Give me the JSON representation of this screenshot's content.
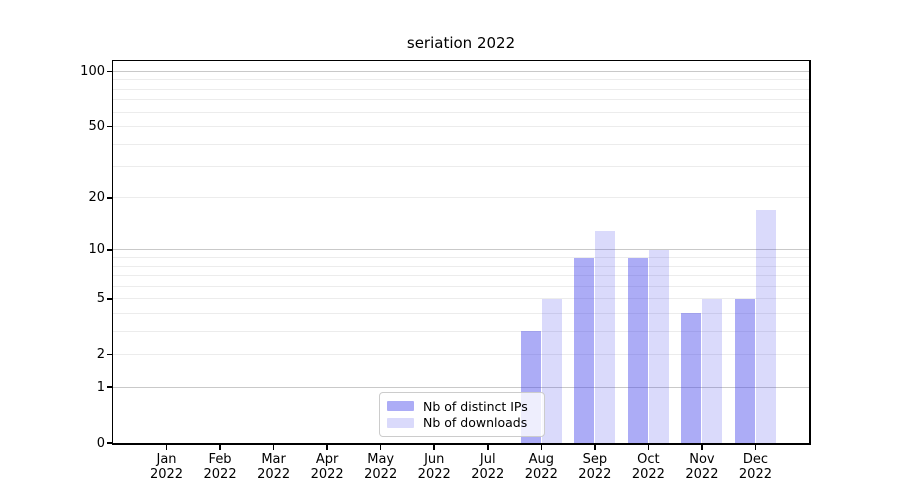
{
  "chart_data": {
    "type": "bar",
    "title": "seriation 2022",
    "categories": [
      "Jan 2022",
      "Feb 2022",
      "Mar 2022",
      "Apr 2022",
      "May 2022",
      "Jun 2022",
      "Jul 2022",
      "Aug 2022",
      "Sep 2022",
      "Oct 2022",
      "Nov 2022",
      "Dec 2022"
    ],
    "series": [
      {
        "name": "Nb of distinct IPs",
        "color": "rgba(70,70,235,0.45)",
        "values": [
          0,
          0,
          0,
          0,
          0,
          0,
          0,
          3,
          9,
          9,
          4,
          5
        ]
      },
      {
        "name": "Nb of downloads",
        "color": "rgba(70,70,235,0.2)",
        "values": [
          0,
          0,
          0,
          0,
          0,
          0,
          0,
          5,
          13,
          10,
          5,
          17
        ]
      }
    ],
    "xlabel": "",
    "ylabel": "",
    "yscale": "log1p",
    "ylim": [
      0,
      114
    ],
    "y_tick_labels": [
      0,
      1,
      2,
      5,
      10,
      20,
      50,
      100
    ],
    "y_major_gridlines": [
      1,
      10,
      100
    ],
    "y_minor_gridlines": [
      2,
      3,
      4,
      5,
      6,
      7,
      8,
      9,
      20,
      30,
      40,
      50,
      60,
      70,
      80,
      90
    ],
    "grid": true,
    "legend_position": "lower center inside plot",
    "colors": {
      "grid_major": "#c9c9c9",
      "grid_minor": "#ececec",
      "spine": "#000000",
      "text": "#000000",
      "background": "#ffffff"
    }
  }
}
